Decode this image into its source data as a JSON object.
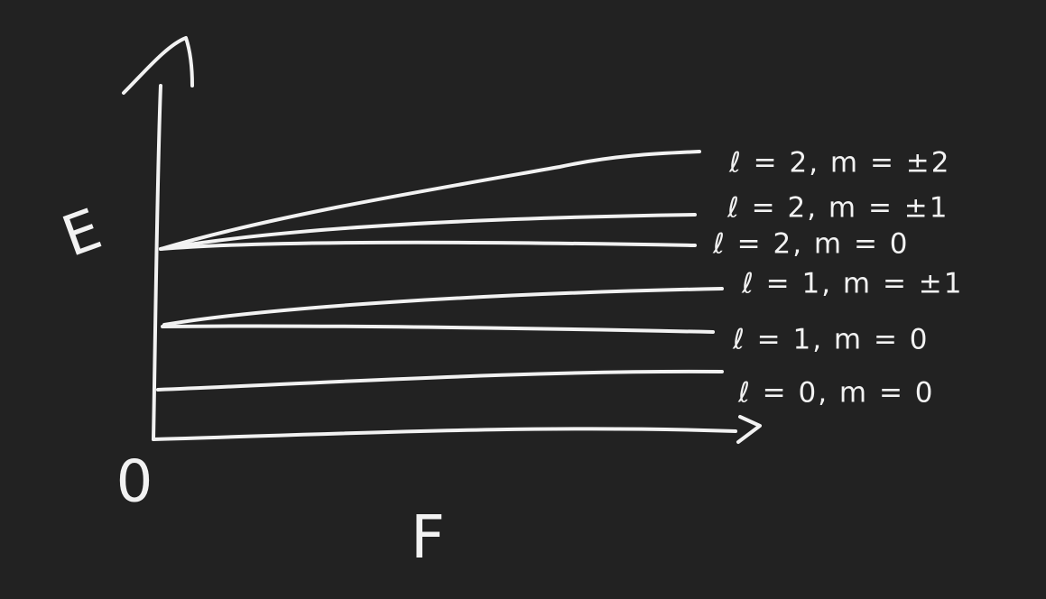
{
  "axes": {
    "y_label": "E",
    "x_label": "F",
    "origin": "0"
  },
  "levels": [
    {
      "label": "ℓ = 2, m = ±2"
    },
    {
      "label": "ℓ = 2, m = ±1"
    },
    {
      "label": "ℓ = 2, m = 0"
    },
    {
      "label": "ℓ = 1, m = ±1"
    },
    {
      "label": "ℓ = 1, m = 0"
    },
    {
      "label": "ℓ = 0, m = 0"
    }
  ]
}
